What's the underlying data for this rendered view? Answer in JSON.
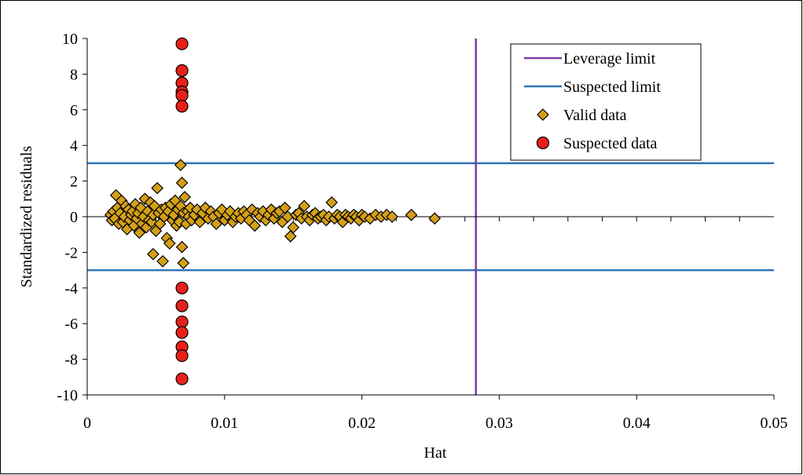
{
  "chart_data": {
    "type": "scatter",
    "title": "",
    "xlabel": "Hat",
    "ylabel": "Standardized residuals",
    "xlim": [
      0,
      0.05
    ],
    "ylim": [
      -10,
      10
    ],
    "x_ticks": [
      0,
      0.01,
      0.02,
      0.03,
      0.04,
      0.05
    ],
    "x_tick_labels": [
      "0",
      "0.01",
      "0.02",
      "0.03",
      "0.04",
      "0.05"
    ],
    "y_ticks": [
      -10,
      -8,
      -6,
      -4,
      -2,
      0,
      2,
      4,
      6,
      8,
      10
    ],
    "y_tick_labels": [
      "-10",
      "-8",
      "-6",
      "-4",
      "-2",
      "0",
      "2",
      "4",
      "6",
      "8",
      "10"
    ],
    "grid": false,
    "legend_position": "top-right",
    "legend": [
      {
        "label": "Leverage limit",
        "marker": "line",
        "color": "#7B3FA0"
      },
      {
        "label": "Suspected limit",
        "marker": "line",
        "color": "#2E75B6"
      },
      {
        "label": "Valid data",
        "marker": "diamond",
        "color": "#D4A017"
      },
      {
        "label": "Suspected data",
        "marker": "circle",
        "color": "#E8201A"
      }
    ],
    "reference_lines": {
      "leverage_limit_x": 0.0283,
      "suspected_limits_y": [
        3,
        -3
      ]
    },
    "series": [
      {
        "name": "Valid data",
        "marker": "diamond",
        "color": "#D4A017",
        "points": [
          [
            0.0017,
            0.1
          ],
          [
            0.0018,
            -0.2
          ],
          [
            0.0019,
            0.3
          ],
          [
            0.002,
            -0.1
          ],
          [
            0.0021,
            1.2
          ],
          [
            0.0022,
            0.5
          ],
          [
            0.0023,
            -0.4
          ],
          [
            0.0024,
            0.2
          ],
          [
            0.0025,
            0.9
          ],
          [
            0.0026,
            -0.3
          ],
          [
            0.0027,
            0.0
          ],
          [
            0.0028,
            0.6
          ],
          [
            0.0029,
            -0.7
          ],
          [
            0.003,
            0.4
          ],
          [
            0.0031,
            -0.2
          ],
          [
            0.0032,
            0.1
          ],
          [
            0.0033,
            0.3
          ],
          [
            0.0034,
            -0.5
          ],
          [
            0.0035,
            0.7
          ],
          [
            0.0036,
            -0.1
          ],
          [
            0.0037,
            0.2
          ],
          [
            0.0038,
            -0.9
          ],
          [
            0.0039,
            0.5
          ],
          [
            0.004,
            -0.4
          ],
          [
            0.0041,
            0.0
          ],
          [
            0.0042,
            1.0
          ],
          [
            0.0043,
            -0.6
          ],
          [
            0.0044,
            0.3
          ],
          [
            0.0045,
            -0.2
          ],
          [
            0.0046,
            0.8
          ],
          [
            0.0047,
            -0.3
          ],
          [
            0.0048,
            0.1
          ],
          [
            0.0048,
            -2.1
          ],
          [
            0.0049,
            0.6
          ],
          [
            0.005,
            -0.8
          ],
          [
            0.0051,
            1.6
          ],
          [
            0.0052,
            0.2
          ],
          [
            0.0053,
            -0.4
          ],
          [
            0.0054,
            0.4
          ],
          [
            0.0055,
            -2.5
          ],
          [
            0.0056,
            0.0
          ],
          [
            0.0057,
            0.5
          ],
          [
            0.0058,
            -1.2
          ],
          [
            0.0059,
            0.3
          ],
          [
            0.006,
            -1.5
          ],
          [
            0.0061,
            0.7
          ],
          [
            0.0062,
            -0.2
          ],
          [
            0.0063,
            0.1
          ],
          [
            0.0064,
            0.9
          ],
          [
            0.0065,
            -0.5
          ],
          [
            0.0066,
            0.4
          ],
          [
            0.0067,
            -0.3
          ],
          [
            0.0068,
            0.6
          ],
          [
            0.0068,
            2.9
          ],
          [
            0.0069,
            1.9
          ],
          [
            0.0069,
            -1.7
          ],
          [
            0.007,
            -2.6
          ],
          [
            0.007,
            0.2
          ],
          [
            0.0071,
            1.1
          ],
          [
            0.0072,
            -0.4
          ],
          [
            0.0073,
            0.3
          ],
          [
            0.0074,
            0.0
          ],
          [
            0.0075,
            0.5
          ],
          [
            0.0076,
            -0.2
          ],
          [
            0.0078,
            0.1
          ],
          [
            0.008,
            0.4
          ],
          [
            0.0082,
            -0.3
          ],
          [
            0.0084,
            0.2
          ],
          [
            0.0086,
            0.5
          ],
          [
            0.0088,
            -0.1
          ],
          [
            0.009,
            0.3
          ],
          [
            0.0092,
            0.0
          ],
          [
            0.0094,
            -0.4
          ],
          [
            0.0096,
            0.2
          ],
          [
            0.0098,
            0.4
          ],
          [
            0.01,
            -0.2
          ],
          [
            0.0102,
            0.1
          ],
          [
            0.0104,
            0.3
          ],
          [
            0.0106,
            -0.3
          ],
          [
            0.0108,
            0.0
          ],
          [
            0.011,
            0.2
          ],
          [
            0.0112,
            -0.1
          ],
          [
            0.0114,
            0.3
          ],
          [
            0.0116,
            0.1
          ],
          [
            0.0118,
            -0.2
          ],
          [
            0.012,
            0.4
          ],
          [
            0.0122,
            -0.5
          ],
          [
            0.0124,
            0.2
          ],
          [
            0.0126,
            0.0
          ],
          [
            0.0128,
            0.3
          ],
          [
            0.013,
            -0.2
          ],
          [
            0.0132,
            0.1
          ],
          [
            0.0134,
            0.4
          ],
          [
            0.0136,
            -0.1
          ],
          [
            0.0138,
            0.2
          ],
          [
            0.014,
            0.3
          ],
          [
            0.0142,
            -0.3
          ],
          [
            0.0144,
            0.5
          ],
          [
            0.0146,
            0.0
          ],
          [
            0.0148,
            -1.1
          ],
          [
            0.015,
            -0.6
          ],
          [
            0.0152,
            0.1
          ],
          [
            0.0154,
            0.2
          ],
          [
            0.0156,
            -0.1
          ],
          [
            0.0158,
            0.6
          ],
          [
            0.016,
            0.0
          ],
          [
            0.0162,
            -0.2
          ],
          [
            0.0164,
            0.1
          ],
          [
            0.0166,
            0.2
          ],
          [
            0.0168,
            -0.1
          ],
          [
            0.017,
            0.0
          ],
          [
            0.0172,
            0.1
          ],
          [
            0.0174,
            -0.2
          ],
          [
            0.0176,
            0.0
          ],
          [
            0.0178,
            0.8
          ],
          [
            0.018,
            -0.1
          ],
          [
            0.0182,
            0.1
          ],
          [
            0.0184,
            0.0
          ],
          [
            0.0186,
            -0.3
          ],
          [
            0.0188,
            0.1
          ],
          [
            0.019,
            0.0
          ],
          [
            0.0192,
            -0.1
          ],
          [
            0.0194,
            0.1
          ],
          [
            0.0196,
            0.0
          ],
          [
            0.0198,
            -0.2
          ],
          [
            0.02,
            0.1
          ],
          [
            0.0202,
            0.0
          ],
          [
            0.0206,
            -0.1
          ],
          [
            0.021,
            0.1
          ],
          [
            0.0214,
            0.0
          ],
          [
            0.0218,
            0.1
          ],
          [
            0.0222,
            0.0
          ],
          [
            0.0236,
            0.1
          ],
          [
            0.0253,
            -0.1
          ]
        ]
      },
      {
        "name": "Suspected data",
        "marker": "circle",
        "color": "#E8201A",
        "points": [
          [
            0.0069,
            9.7
          ],
          [
            0.0069,
            8.2
          ],
          [
            0.0069,
            7.5
          ],
          [
            0.0069,
            7.0
          ],
          [
            0.0069,
            6.8
          ],
          [
            0.0069,
            6.2
          ],
          [
            0.0069,
            -4.0
          ],
          [
            0.0069,
            -5.0
          ],
          [
            0.0069,
            -5.9
          ],
          [
            0.0069,
            -6.5
          ],
          [
            0.0069,
            -7.3
          ],
          [
            0.0069,
            -7.8
          ],
          [
            0.0069,
            -9.1
          ]
        ]
      }
    ]
  }
}
